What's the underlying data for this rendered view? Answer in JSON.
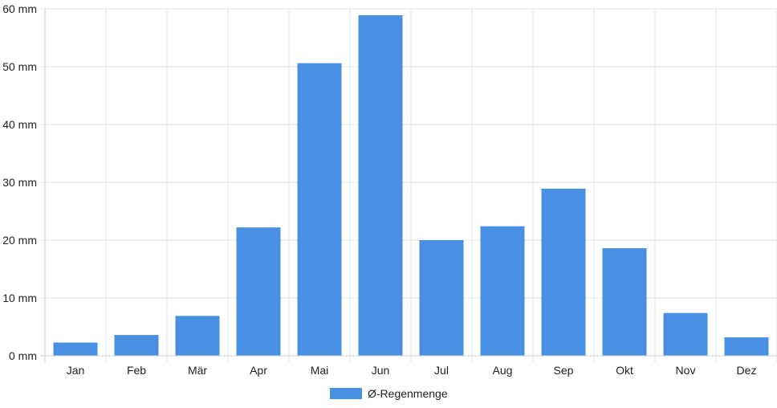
{
  "chart_data": {
    "type": "bar",
    "categories": [
      "Jan",
      "Feb",
      "Mär",
      "Apr",
      "Mai",
      "Jun",
      "Jul",
      "Aug",
      "Sep",
      "Okt",
      "Nov",
      "Dez"
    ],
    "series": [
      {
        "name": "Ø-Regenmenge",
        "values": [
          2.3,
          3.6,
          6.9,
          22.2,
          50.6,
          58.9,
          20.0,
          22.4,
          28.9,
          18.6,
          7.4,
          3.2
        ],
        "color": "#4a90e2"
      }
    ],
    "yticks": [
      "0 mm",
      "10 mm",
      "20 mm",
      "30 mm",
      "40 mm",
      "50 mm",
      "60 mm"
    ],
    "ylim": [
      0,
      60
    ],
    "grid": true,
    "legend_position": "bottom-center"
  }
}
